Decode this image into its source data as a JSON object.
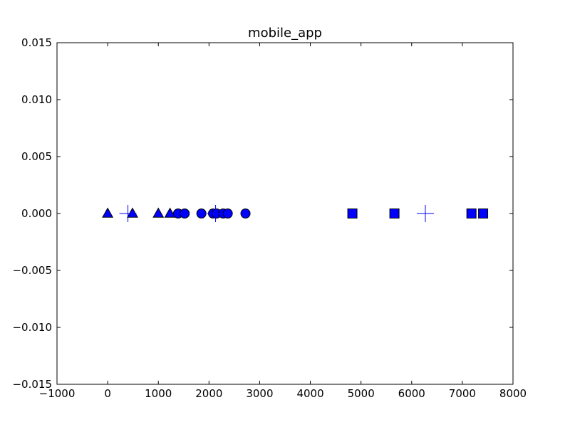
{
  "chart_data": {
    "type": "scatter",
    "title": "mobile_app",
    "xlabel": "",
    "ylabel": "",
    "xlim": [
      -1000,
      8000
    ],
    "ylim": [
      -0.015,
      0.015
    ],
    "x_ticks": [
      -1000,
      0,
      1000,
      2000,
      3000,
      4000,
      5000,
      6000,
      7000,
      8000
    ],
    "y_ticks": [
      0.015,
      0.01,
      0.005,
      0.0,
      -0.005,
      -0.01,
      -0.015
    ],
    "x_tick_labels": [
      "−1000",
      "0",
      "1000",
      "2000",
      "3000",
      "4000",
      "5000",
      "6000",
      "7000",
      "8000"
    ],
    "y_tick_labels": [
      "0.015",
      "0.010",
      "0.005",
      "0.000",
      "−0.005",
      "−0.010",
      "−0.015"
    ],
    "grid": false,
    "marker_color": "#0000ff",
    "series": [
      {
        "marker": "triangle",
        "x": [
          0,
          490,
          1000,
          1230
        ],
        "y": [
          0,
          0,
          0,
          0
        ]
      },
      {
        "marker": "circle",
        "x": [
          1390,
          1520,
          1850,
          2080,
          2150,
          2280,
          2370,
          2720
        ],
        "y": [
          0,
          0,
          0,
          0,
          0,
          0,
          0,
          0
        ]
      },
      {
        "marker": "square",
        "x": [
          4830,
          5660,
          7180,
          7410
        ],
        "y": [
          0,
          0,
          0,
          0
        ]
      },
      {
        "marker": "plus",
        "x": [
          400,
          2130,
          6270
        ],
        "y": [
          0,
          0,
          0
        ]
      }
    ]
  }
}
